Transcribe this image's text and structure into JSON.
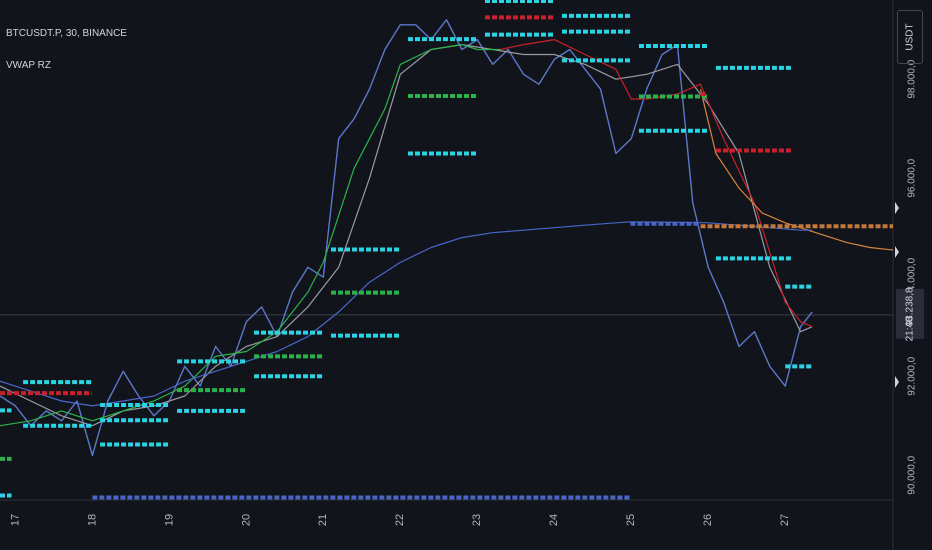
{
  "header": {
    "symbol_line": "BTCUSDT.P, 30, BINANCE",
    "indicator_name": "VWAP RZ"
  },
  "price_axis": {
    "unit": "USDT",
    "tick_labels": [
      "98.000,0",
      "96.000,0",
      "94.000,0",
      "92.000,0",
      "90.000,0"
    ],
    "current_price": "93.238,8",
    "countdown": "21:48"
  },
  "time_axis": {
    "tick_labels": [
      "17",
      "18",
      "19",
      "20",
      "21",
      "22",
      "23",
      "24",
      "25",
      "26",
      "27"
    ]
  },
  "colors": {
    "background": "#12141c",
    "price": "#5b78c9",
    "vwap_gray": "#9a9aa2",
    "vwap_green": "#2bb34a",
    "vwap_red": "#c8212b",
    "vwap_orange": "#d9853b",
    "anchored_vwap": "#4a66c8",
    "level_cyan": "#2ad4e3",
    "level_green": "#2bb34a",
    "level_red": "#c8212b",
    "level_orange": "#c27a3a",
    "level_blue": "#4a66c8"
  },
  "chart_data": {
    "type": "line",
    "title": "BTCUSDT.P, 30, BINANCE",
    "x_unit": "day of month",
    "xlim": [
      16.8,
      28.4
    ],
    "ylim": [
      89500,
      99600
    ],
    "grid": false,
    "series": [
      {
        "role": "price",
        "color": "#5b78c9",
        "x": [
          16.8,
          17.0,
          17.2,
          17.4,
          17.6,
          17.8,
          18.0,
          18.2,
          18.4,
          18.6,
          18.8,
          19.0,
          19.2,
          19.4,
          19.6,
          19.8,
          20.0,
          20.2,
          20.4,
          20.6,
          20.8,
          21.0,
          21.2,
          21.4,
          21.6,
          21.8,
          22.0,
          22.2,
          22.4,
          22.6,
          22.8,
          23.0,
          23.2,
          23.4,
          23.6,
          23.8,
          24.0,
          24.2,
          24.4,
          24.6,
          24.8,
          25.0,
          25.2,
          25.4,
          25.6,
          25.8,
          26.0,
          26.2,
          26.4,
          26.6,
          26.8,
          27.0,
          27.2,
          27.35
        ],
        "y": [
          91600,
          91400,
          91000,
          91300,
          91100,
          91500,
          90400,
          91500,
          92100,
          91600,
          91200,
          91500,
          92200,
          91800,
          92600,
          92200,
          93100,
          93400,
          92800,
          93700,
          94200,
          94000,
          96800,
          97200,
          97800,
          98600,
          99100,
          99100,
          98800,
          99200,
          98600,
          98800,
          98300,
          98600,
          98100,
          97900,
          98400,
          98600,
          98200,
          97800,
          96500,
          96800,
          97800,
          98500,
          98700,
          95500,
          94200,
          93500,
          92600,
          92900,
          92200,
          91800,
          93000,
          93300
        ]
      },
      {
        "role": "vwap-gray",
        "color": "#9a9aa2",
        "x": [
          16.8,
          17.2,
          17.6,
          18.0,
          18.4,
          18.8,
          19.2,
          19.6,
          20.0,
          20.4,
          20.8,
          21.2,
          21.6,
          22.0,
          22.4,
          22.8,
          23.2,
          23.6,
          24.0,
          24.4,
          24.8,
          25.2,
          25.6,
          26.0,
          26.4,
          26.8,
          27.2,
          27.35
        ],
        "y": [
          91800,
          91500,
          91200,
          91000,
          91300,
          91400,
          91600,
          92200,
          92600,
          92800,
          93400,
          94200,
          96000,
          98100,
          98600,
          98700,
          98600,
          98500,
          98500,
          98300,
          98000,
          98100,
          98300,
          97500,
          96500,
          94200,
          92900,
          93000
        ]
      },
      {
        "role": "vwap-green",
        "color": "#2bb34a",
        "x": [
          16.8,
          17.2,
          17.6,
          18.0,
          18.4,
          18.8,
          19.2,
          19.6,
          20.0,
          20.4,
          20.8,
          21.0,
          21.4,
          21.8,
          22.0,
          22.4,
          22.8,
          23.0,
          23.3
        ],
        "y": [
          91000,
          91100,
          91300,
          91100,
          91300,
          91500,
          91800,
          92400,
          92500,
          92900,
          93700,
          94300,
          96200,
          97400,
          98300,
          98600,
          98700,
          98600,
          98600
        ]
      },
      {
        "role": "vwap-red",
        "color": "#c8212b",
        "x": [
          23.3,
          23.6,
          24.0,
          24.4,
          24.8,
          25.0,
          25.2,
          25.6,
          25.9,
          26.2,
          26.6,
          27.0,
          27.2,
          27.35
        ],
        "y": [
          98600,
          98700,
          98800,
          98500,
          98200,
          97600,
          97600,
          97700,
          97900,
          96800,
          95500,
          93500,
          93100,
          93000
        ]
      },
      {
        "role": "vwap-orange",
        "color": "#d9853b",
        "x": [
          25.9,
          26.1,
          26.4,
          26.7,
          27.0,
          27.4,
          27.8,
          28.1,
          28.4
        ],
        "y": [
          97800,
          96500,
          95800,
          95300,
          95100,
          94900,
          94700,
          94600,
          94550
        ]
      },
      {
        "role": "anchored-vwap",
        "color": "#4a66c8",
        "x": [
          16.8,
          17.2,
          17.6,
          18.0,
          18.4,
          18.8,
          19.2,
          19.6,
          20.0,
          20.4,
          20.8,
          21.2,
          21.6,
          22.0,
          22.4,
          22.8,
          23.2,
          23.6,
          24.0,
          24.4,
          24.8,
          25.0,
          25.6,
          26.0,
          26.4,
          26.8,
          27.2,
          27.35
        ],
        "y": [
          91900,
          91700,
          91500,
          91400,
          91500,
          91600,
          91900,
          92100,
          92300,
          92500,
          92800,
          93300,
          93900,
          94300,
          94600,
          94800,
          94900,
          94950,
          95000,
          95050,
          95100,
          95120,
          95110,
          95100,
          95050,
          95000,
          94950,
          94950
        ]
      }
    ],
    "levels": [
      {
        "color": "#2ad4e3",
        "y": 91880,
        "x1": 17.1,
        "x2": 17.99
      },
      {
        "color": "#2ad4e3",
        "y": 91310,
        "x1": 16.8,
        "x2": 16.95
      },
      {
        "color": "#2ad4e3",
        "y": 91000,
        "x1": 17.1,
        "x2": 17.99
      },
      {
        "color": "#2ad4e3",
        "y": 89590,
        "x1": 16.8,
        "x2": 16.95
      },
      {
        "color": "#c8212b",
        "y": 91660,
        "x1": 16.8,
        "x2": 17.99
      },
      {
        "color": "#2bb34a",
        "y": 90330,
        "x1": 16.8,
        "x2": 16.95
      },
      {
        "color": "#2ad4e3",
        "y": 91420,
        "x1": 18.1,
        "x2": 18.99
      },
      {
        "color": "#2ad4e3",
        "y": 91110,
        "x1": 18.1,
        "x2": 18.99
      },
      {
        "color": "#2ad4e3",
        "y": 90620,
        "x1": 18.1,
        "x2": 18.99
      },
      {
        "color": "#2ad4e3",
        "y": 92300,
        "x1": 19.1,
        "x2": 19.99
      },
      {
        "color": "#2ad4e3",
        "y": 91300,
        "x1": 19.1,
        "x2": 19.99
      },
      {
        "color": "#2bb34a",
        "y": 91720,
        "x1": 19.1,
        "x2": 19.99
      },
      {
        "color": "#2ad4e3",
        "y": 92880,
        "x1": 20.1,
        "x2": 20.99
      },
      {
        "color": "#2ad4e3",
        "y": 92000,
        "x1": 20.1,
        "x2": 20.99
      },
      {
        "color": "#2bb34a",
        "y": 92400,
        "x1": 20.1,
        "x2": 20.99
      },
      {
        "color": "#2ad4e3",
        "y": 94560,
        "x1": 21.1,
        "x2": 21.99
      },
      {
        "color": "#2ad4e3",
        "y": 92820,
        "x1": 21.1,
        "x2": 21.99
      },
      {
        "color": "#2bb34a",
        "y": 93690,
        "x1": 21.1,
        "x2": 21.99
      },
      {
        "color": "#2ad4e3",
        "y": 98810,
        "x1": 22.1,
        "x2": 22.99
      },
      {
        "color": "#2ad4e3",
        "y": 96500,
        "x1": 22.1,
        "x2": 22.99
      },
      {
        "color": "#2bb34a",
        "y": 97660,
        "x1": 22.1,
        "x2": 22.99
      },
      {
        "color": "#2ad4e3",
        "y": 99580,
        "x1": 23.1,
        "x2": 23.99
      },
      {
        "color": "#2ad4e3",
        "y": 98900,
        "x1": 23.1,
        "x2": 23.99
      },
      {
        "color": "#c8212b",
        "y": 99250,
        "x1": 23.1,
        "x2": 23.99
      },
      {
        "color": "#2ad4e3",
        "y": 99280,
        "x1": 24.1,
        "x2": 24.99
      },
      {
        "color": "#2ad4e3",
        "y": 98960,
        "x1": 24.1,
        "x2": 24.99
      },
      {
        "color": "#2ad4e3",
        "y": 98380,
        "x1": 24.1,
        "x2": 24.99
      },
      {
        "color": "#2ad4e3",
        "y": 98670,
        "x1": 25.1,
        "x2": 25.99
      },
      {
        "color": "#2ad4e3",
        "y": 96960,
        "x1": 25.1,
        "x2": 25.99
      },
      {
        "color": "#2bb34a",
        "y": 97650,
        "x1": 25.1,
        "x2": 25.99
      },
      {
        "color": "#c8212b",
        "y": 97700,
        "x1": 25.9,
        "x2": 25.99
      },
      {
        "color": "#2ad4e3",
        "y": 98230,
        "x1": 26.1,
        "x2": 27.1
      },
      {
        "color": "#c8212b",
        "y": 96560,
        "x1": 26.1,
        "x2": 27.1
      },
      {
        "color": "#c27a3a",
        "y": 95030,
        "x1": 25.9,
        "x2": 28.4
      },
      {
        "color": "#2ad4e3",
        "y": 94380,
        "x1": 26.1,
        "x2": 27.1
      },
      {
        "color": "#2ad4e3",
        "y": 93810,
        "x1": 27.0,
        "x2": 27.35
      },
      {
        "color": "#2ad4e3",
        "y": 92200,
        "x1": 27.0,
        "x2": 27.35
      },
      {
        "color": "#4a66c8",
        "y": 89550,
        "x1": 18.0,
        "x2": 24.99
      },
      {
        "color": "#4a66c8",
        "y": 95080,
        "x1": 24.99,
        "x2": 25.9
      }
    ]
  }
}
